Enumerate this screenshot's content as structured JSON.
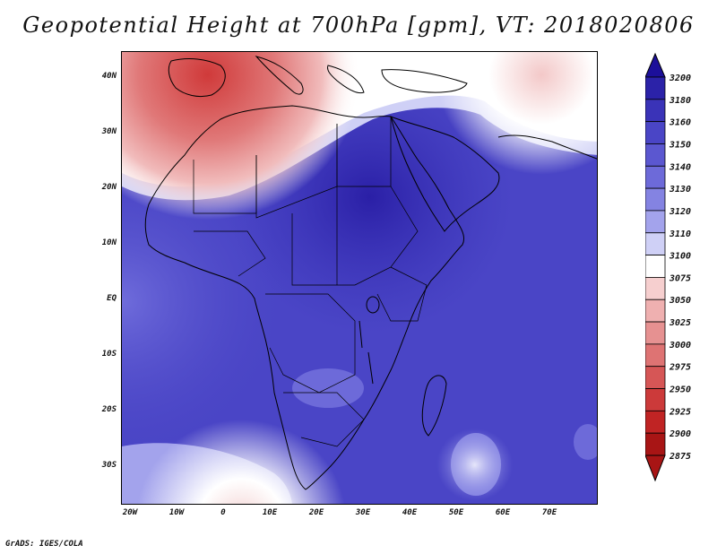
{
  "title": "Geopotential Height at 700hPa [gpm], VT: 2018020806",
  "footer": "GrADS: IGES/COLA",
  "y_axis_labels": [
    "40N",
    "30N",
    "20N",
    "10N",
    "EQ",
    "10S",
    "20S",
    "30S"
  ],
  "x_axis_labels": [
    "20W",
    "10W",
    "0",
    "10E",
    "20E",
    "30E",
    "40E",
    "50E",
    "60E",
    "70E"
  ],
  "colorbar": {
    "levels": [
      "3200",
      "3180",
      "3160",
      "3150",
      "3140",
      "3130",
      "3120",
      "3110",
      "3100",
      "3075",
      "3050",
      "3025",
      "3000",
      "2975",
      "2950",
      "2925",
      "2900",
      "2875"
    ],
    "colors": [
      "#1c0f9a",
      "#2b22a8",
      "#3a33b8",
      "#4a45c6",
      "#5b57d0",
      "#6d6ad9",
      "#8483e2",
      "#a3a3ec",
      "#cfd0f6",
      "#ffffff",
      "#f6cfcf",
      "#efb0b0",
      "#e69191",
      "#de7373",
      "#d65656",
      "#cc3a3a",
      "#c02424",
      "#a81515"
    ]
  }
}
